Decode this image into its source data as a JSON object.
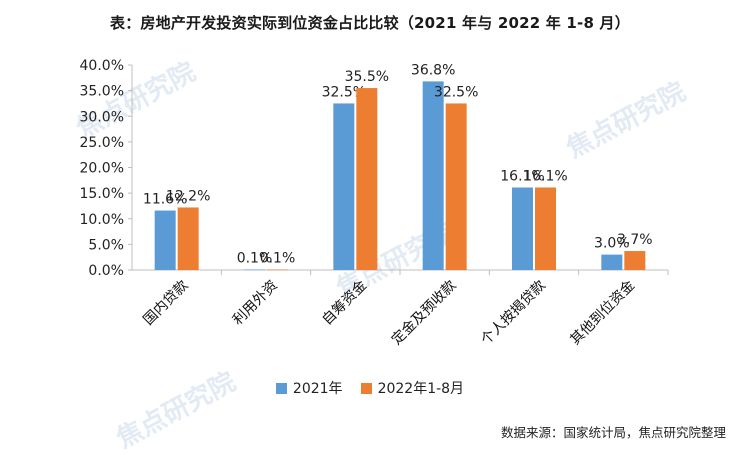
{
  "title": "表：房地产开发投资实际到位资金占比比较（2021 年与 2022 年 1-8 月）",
  "source": "数据来源：国家统计局，焦点研究院整理",
  "watermark": "焦点研究院",
  "colors": {
    "series_2021": "#5B9BD5",
    "series_2022": "#ED7D31"
  },
  "chart_data": {
    "type": "bar",
    "title": "表：房地产开发投资实际到位资金占比比较（2021 年与 2022 年 1-8 月）",
    "categories": [
      "国内贷款",
      "利用外资",
      "自筹资金",
      "定金及预收款",
      "个人按揭贷款",
      "其他到位资金"
    ],
    "series": [
      {
        "name": "2021年",
        "values": [
          11.6,
          0.1,
          32.5,
          36.8,
          16.1,
          3.0
        ]
      },
      {
        "name": "2022年1-8月",
        "values": [
          12.2,
          0.1,
          35.5,
          32.5,
          16.1,
          3.7
        ]
      }
    ],
    "data_labels": [
      [
        "11.6%",
        "0.1%",
        "32.5%",
        "36.8%",
        "16.1%",
        "3.0%"
      ],
      [
        "12.2%",
        "0.1%",
        "35.5%",
        "32.5%",
        "16.1%",
        "3.7%"
      ]
    ],
    "ylim": [
      0,
      40
    ],
    "yticks": [
      "0.0%",
      "5.0%",
      "10.0%",
      "15.0%",
      "20.0%",
      "25.0%",
      "30.0%",
      "35.0%",
      "40.0%"
    ],
    "grid": false,
    "legend_position": "bottom",
    "xlabel": "",
    "ylabel": ""
  }
}
